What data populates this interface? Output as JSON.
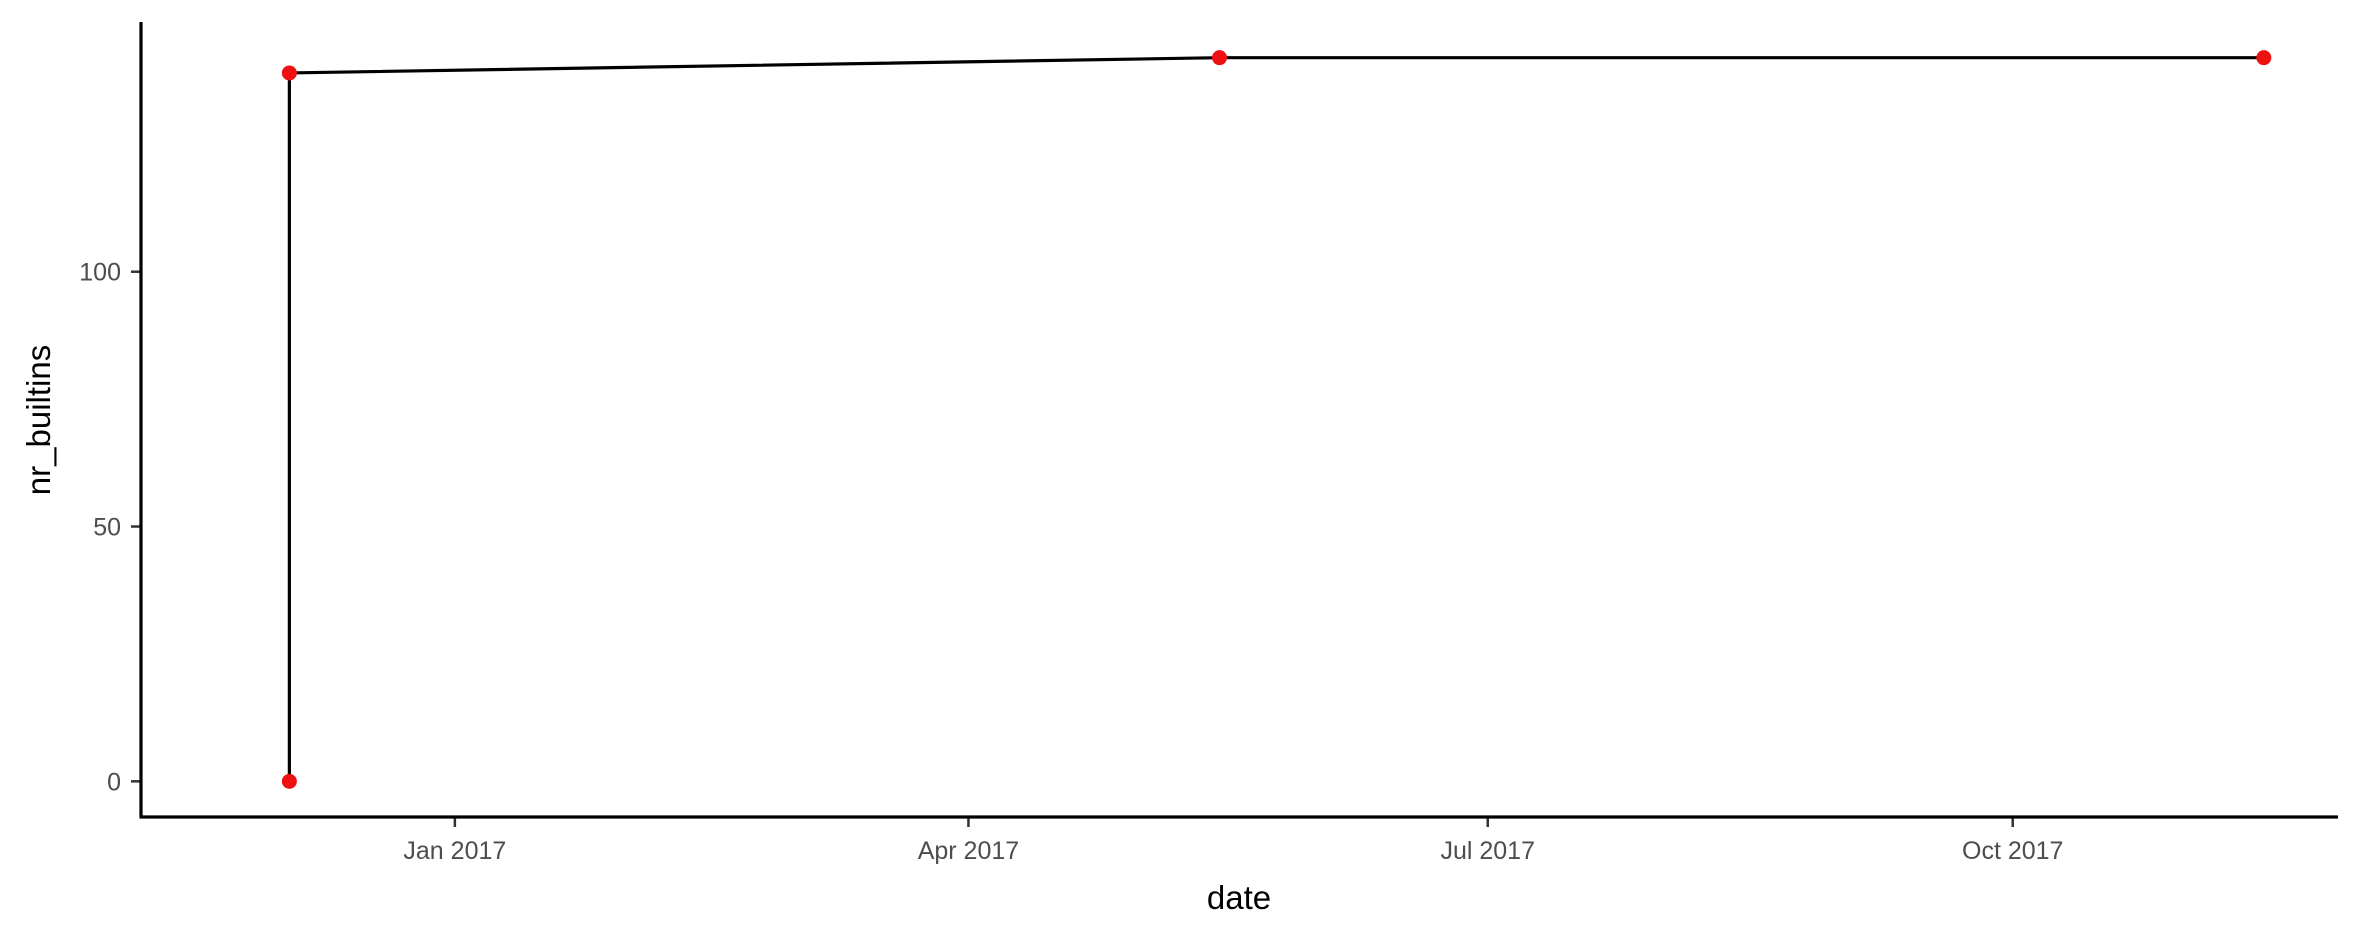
{
  "chart_data": {
    "type": "line",
    "xlabel": "date",
    "ylabel": "nr_builtins",
    "x_axis_type": "date",
    "xlim": [
      "2016-11-07",
      "2017-11-27"
    ],
    "ylim": [
      -7,
      149
    ],
    "x_ticks": [
      {
        "value": "2017-01-01",
        "label": "Jan 2017"
      },
      {
        "value": "2017-04-01",
        "label": "Apr 2017"
      },
      {
        "value": "2017-07-01",
        "label": "Jul 2017"
      },
      {
        "value": "2017-10-01",
        "label": "Oct 2017"
      }
    ],
    "y_ticks": [
      0,
      50,
      100
    ],
    "grid": false,
    "line_color": "#000000",
    "point_color": "#ee1111",
    "series": [
      {
        "x": [
          "2016-12-03",
          "2016-12-03",
          "2017-05-15",
          "2017-11-14"
        ],
        "y": [
          0,
          139,
          142,
          142
        ]
      }
    ]
  }
}
